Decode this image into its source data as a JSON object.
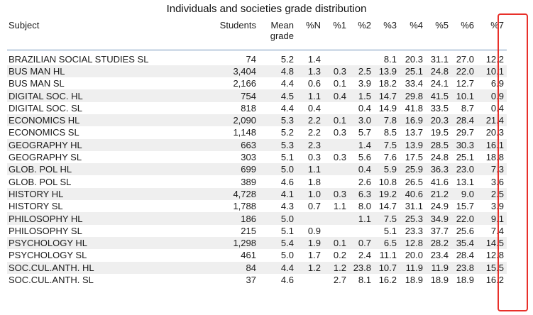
{
  "title": "Individuals and societies grade distribution",
  "columns": [
    "Subject",
    "Students",
    "Mean grade",
    "%N",
    "%1",
    "%2",
    "%3",
    "%4",
    "%5",
    "%6",
    "%7"
  ],
  "rows": [
    [
      "BRAZILIAN SOCIAL STUDIES SL",
      "74",
      "5.2",
      "1.4",
      "",
      "",
      "8.1",
      "20.3",
      "31.1",
      "27.0",
      "12.2"
    ],
    [
      "BUS MAN HL",
      "3,404",
      "4.8",
      "1.3",
      "0.3",
      "2.5",
      "13.9",
      "25.1",
      "24.8",
      "22.0",
      "10.1"
    ],
    [
      "BUS MAN SL",
      "2,166",
      "4.4",
      "0.6",
      "0.1",
      "3.9",
      "18.2",
      "33.4",
      "24.1",
      "12.7",
      "6.9"
    ],
    [
      "DIGITAL SOC. HL",
      "754",
      "4.5",
      "1.1",
      "0.4",
      "1.5",
      "14.7",
      "29.8",
      "41.5",
      "10.1",
      "0.9"
    ],
    [
      "DIGITAL SOC. SL",
      "818",
      "4.4",
      "0.4",
      "",
      "0.4",
      "14.9",
      "41.8",
      "33.5",
      "8.7",
      "0.4"
    ],
    [
      "ECONOMICS HL",
      "2,090",
      "5.3",
      "2.2",
      "0.1",
      "3.0",
      "7.8",
      "16.9",
      "20.3",
      "28.4",
      "21.4"
    ],
    [
      "ECONOMICS SL",
      "1,148",
      "5.2",
      "2.2",
      "0.3",
      "5.7",
      "8.5",
      "13.7",
      "19.5",
      "29.7",
      "20.3"
    ],
    [
      "GEOGRAPHY HL",
      "663",
      "5.3",
      "2.3",
      "",
      "1.4",
      "7.5",
      "13.9",
      "28.5",
      "30.3",
      "16.1"
    ],
    [
      "GEOGRAPHY SL",
      "303",
      "5.1",
      "0.3",
      "0.3",
      "5.6",
      "7.6",
      "17.5",
      "24.8",
      "25.1",
      "18.8"
    ],
    [
      "GLOB. POL HL",
      "699",
      "5.0",
      "1.1",
      "",
      "0.4",
      "5.9",
      "25.9",
      "36.3",
      "23.0",
      "7.3"
    ],
    [
      "GLOB. POL SL",
      "389",
      "4.6",
      "1.8",
      "",
      "2.6",
      "10.8",
      "26.5",
      "41.6",
      "13.1",
      "3.6"
    ],
    [
      "HISTORY HL",
      "4,728",
      "4.1",
      "1.0",
      "0.3",
      "6.3",
      "19.2",
      "40.6",
      "21.2",
      "9.0",
      "2.5"
    ],
    [
      "HISTORY SL",
      "1,788",
      "4.3",
      "0.7",
      "1.1",
      "8.0",
      "14.7",
      "31.1",
      "24.9",
      "15.7",
      "3.9"
    ],
    [
      "PHILOSOPHY HL",
      "186",
      "5.0",
      "",
      "",
      "1.1",
      "7.5",
      "25.3",
      "34.9",
      "22.0",
      "9.1"
    ],
    [
      "PHILOSOPHY SL",
      "215",
      "5.1",
      "0.9",
      "",
      "",
      "5.1",
      "23.3",
      "37.7",
      "25.6",
      "7.4"
    ],
    [
      "PSYCHOLOGY HL",
      "1,298",
      "5.4",
      "1.9",
      "0.1",
      "0.7",
      "6.5",
      "12.8",
      "28.2",
      "35.4",
      "14.5"
    ],
    [
      "PSYCHOLOGY SL",
      "461",
      "5.0",
      "1.7",
      "0.2",
      "2.4",
      "11.1",
      "20.0",
      "23.4",
      "28.4",
      "12.8"
    ],
    [
      "SOC.CUL.ANTH. HL",
      "84",
      "4.4",
      "1.2",
      "1.2",
      "23.8",
      "10.7",
      "11.9",
      "11.9",
      "23.8",
      "15.5"
    ],
    [
      "SOC.CUL.ANTH. SL",
      "37",
      "4.6",
      "",
      "2.7",
      "8.1",
      "16.2",
      "18.9",
      "18.9",
      "18.9",
      "16.2"
    ]
  ],
  "highlight_color": "#e8302a",
  "rule_color": "#6b8fb8",
  "stripe_color": "#efefef"
}
